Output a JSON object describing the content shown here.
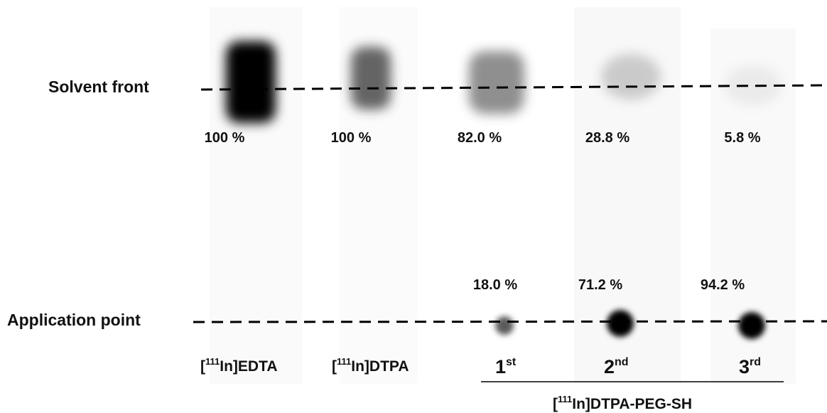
{
  "rows": {
    "solvent_front": "Solvent front",
    "application_point": "Application point"
  },
  "top_percentages": [
    "100 %",
    "100 %",
    "82.0 %",
    "28.8 %",
    "5.8 %"
  ],
  "bottom_percentages": [
    "18.0 %",
    "71.2 %",
    "94.2 %"
  ],
  "lanes": [
    {
      "open": "[",
      "sup": "111",
      "rest": "In]EDTA"
    },
    {
      "open": "[",
      "sup": "111",
      "rest": "In]DTPA"
    }
  ],
  "fractions": [
    {
      "num": "1",
      "sup": "st"
    },
    {
      "num": "2",
      "sup": "nd"
    },
    {
      "num": "3",
      "sup": "rd"
    }
  ],
  "group": {
    "open": "[",
    "sup": "111",
    "rest": "In]DTPA-PEG-SH"
  }
}
